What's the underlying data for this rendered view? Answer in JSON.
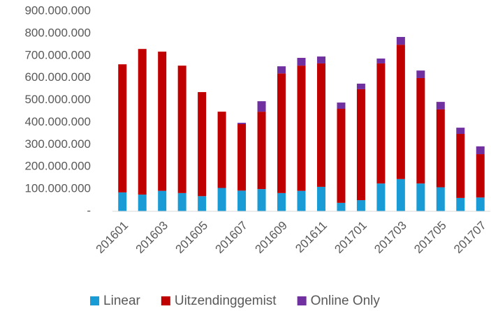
{
  "chart_data": {
    "type": "stacked_bar",
    "categories": [
      "201601",
      null,
      "201603",
      null,
      "201605",
      null,
      "201607",
      null,
      "201609",
      null,
      "201611",
      null,
      "201701",
      null,
      "201703",
      null,
      "201705",
      null,
      "201707"
    ],
    "series": [
      {
        "name": "Linear",
        "color": "#199bd6",
        "values": [
          85000000,
          75000000,
          92000000,
          82000000,
          68000000,
          105000000,
          93000000,
          100000000,
          82000000,
          92000000,
          110000000,
          38000000,
          50000000,
          125000000,
          145000000,
          125000000,
          108000000,
          60000000,
          62000000
        ]
      },
      {
        "name": "Uitzendinggemist",
        "color": "#c00000",
        "values": [
          576000000,
          655000000,
          626000000,
          573000000,
          468000000,
          343000000,
          299000000,
          348000000,
          538000000,
          563000000,
          555000000,
          423000000,
          499000000,
          540000000,
          604000000,
          474000000,
          350000000,
          288000000,
          195000000
        ]
      },
      {
        "name": "Online Only",
        "color": "#7030a0",
        "values": [
          0,
          0,
          0,
          0,
          0,
          0,
          6000000,
          47000000,
          32000000,
          35000000,
          31000000,
          28000000,
          25000000,
          22000000,
          35000000,
          34000000,
          34000000,
          28000000,
          35000000
        ]
      }
    ],
    "ylim": [
      0,
      900000000
    ],
    "yticks": [
      {
        "value": 0,
        "label": "-"
      },
      {
        "value": 100000000,
        "label": "100.000.000"
      },
      {
        "value": 200000000,
        "label": "200.000.000"
      },
      {
        "value": 300000000,
        "label": "300.000.000"
      },
      {
        "value": 400000000,
        "label": "400.000.000"
      },
      {
        "value": 500000000,
        "label": "500.000.000"
      },
      {
        "value": 600000000,
        "label": "600.000.000"
      },
      {
        "value": 700000000,
        "label": "700.000.000"
      },
      {
        "value": 800000000,
        "label": "800.000.000"
      },
      {
        "value": 900000000,
        "label": "900.000.000"
      }
    ],
    "legend": "bottom"
  }
}
